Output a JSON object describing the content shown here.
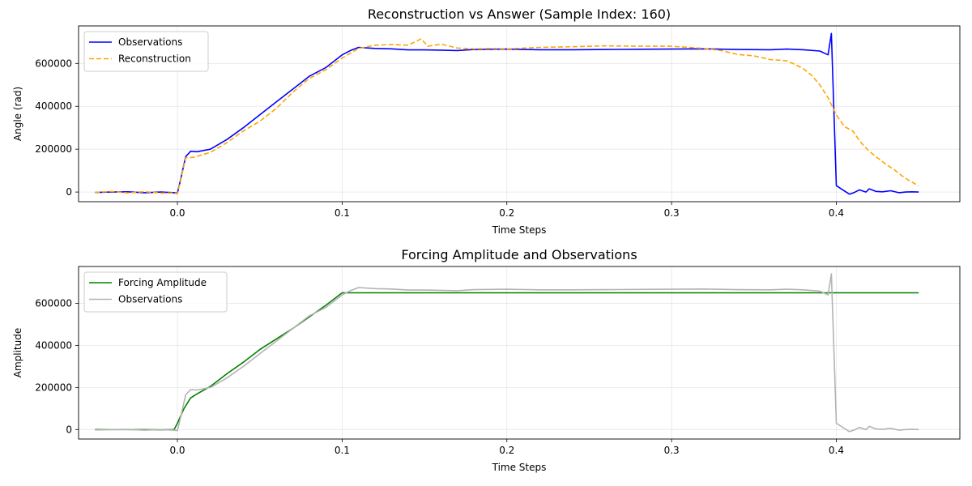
{
  "chart_data": [
    {
      "type": "line",
      "title": "Reconstruction vs Answer (Sample Index: 160)",
      "xlabel": "Time Steps",
      "ylabel": "Angle (rad)",
      "xlim": [
        -0.06,
        0.475
      ],
      "ylim": [
        -45000,
        775000
      ],
      "x_ticks": [
        0.0,
        0.1,
        0.2,
        0.3,
        0.4
      ],
      "x_tick_labels": [
        "0.0",
        "0.1",
        "0.2",
        "0.3",
        "0.4"
      ],
      "y_ticks": [
        0,
        200000,
        400000,
        600000
      ],
      "y_tick_labels": [
        "0",
        "200000",
        "400000",
        "600000"
      ],
      "grid": true,
      "legend_position": "top-left",
      "series": [
        {
          "name": "Observations",
          "color": "#0000ff",
          "style": "solid",
          "x": [
            -0.05,
            -0.04,
            -0.03,
            -0.02,
            -0.01,
            -0.002,
            0.0,
            0.002,
            0.005,
            0.008,
            0.012,
            0.02,
            0.03,
            0.04,
            0.05,
            0.06,
            0.07,
            0.08,
            0.09,
            0.1,
            0.105,
            0.11,
            0.12,
            0.13,
            0.14,
            0.15,
            0.16,
            0.17,
            0.18,
            0.2,
            0.22,
            0.24,
            0.26,
            0.28,
            0.3,
            0.32,
            0.34,
            0.36,
            0.37,
            0.38,
            0.39,
            0.395,
            0.397,
            0.4,
            0.405,
            0.408,
            0.411,
            0.414,
            0.418,
            0.42,
            0.424,
            0.428,
            0.433,
            0.438,
            0.442,
            0.446,
            0.45
          ],
          "y": [
            -2000,
            0,
            1000,
            -3000,
            0,
            -3000,
            -5000,
            60000,
            165000,
            190000,
            188000,
            200000,
            245000,
            300000,
            360000,
            420000,
            480000,
            540000,
            580000,
            640000,
            660000,
            675000,
            670000,
            668000,
            663000,
            663000,
            662000,
            660000,
            665000,
            667000,
            664000,
            664000,
            665000,
            666000,
            667000,
            668000,
            665000,
            664000,
            667000,
            664000,
            658000,
            640000,
            740000,
            30000,
            5000,
            -10000,
            -2000,
            10000,
            0,
            15000,
            3000,
            1000,
            6000,
            -3000,
            0,
            1000,
            0
          ]
        },
        {
          "name": "Reconstruction",
          "color": "#ffa500",
          "style": "dashed",
          "x": [
            -0.05,
            -0.04,
            -0.03,
            -0.02,
            -0.01,
            -0.002,
            0.0,
            0.002,
            0.005,
            0.01,
            0.02,
            0.03,
            0.04,
            0.05,
            0.06,
            0.07,
            0.08,
            0.09,
            0.1,
            0.11,
            0.12,
            0.13,
            0.14,
            0.148,
            0.152,
            0.16,
            0.17,
            0.18,
            0.19,
            0.2,
            0.22,
            0.24,
            0.26,
            0.28,
            0.3,
            0.32,
            0.33,
            0.34,
            0.35,
            0.36,
            0.37,
            0.375,
            0.38,
            0.385,
            0.39,
            0.395,
            0.4,
            0.405,
            0.41,
            0.415,
            0.42,
            0.425,
            0.43,
            0.435,
            0.44,
            0.445,
            0.45
          ],
          "y": [
            -2000,
            3000,
            -4000,
            2000,
            -5000,
            -4000,
            -8000,
            55000,
            160000,
            162000,
            185000,
            230000,
            285000,
            330000,
            390000,
            465000,
            530000,
            570000,
            625000,
            670000,
            685000,
            688000,
            685000,
            715000,
            680000,
            690000,
            672000,
            668000,
            670000,
            668000,
            675000,
            678000,
            682000,
            680000,
            680000,
            670000,
            660000,
            642000,
            635000,
            618000,
            612000,
            595000,
            575000,
            545000,
            500000,
            440000,
            360000,
            305000,
            285000,
            230000,
            190000,
            160000,
            130000,
            105000,
            75000,
            50000,
            30000
          ]
        }
      ]
    },
    {
      "type": "line",
      "title": "Forcing Amplitude and Observations",
      "xlabel": "Time Steps",
      "ylabel": "Amplitude",
      "xlim": [
        -0.06,
        0.475
      ],
      "ylim": [
        -45000,
        775000
      ],
      "x_ticks": [
        0.0,
        0.1,
        0.2,
        0.3,
        0.4
      ],
      "x_tick_labels": [
        "0.0",
        "0.1",
        "0.2",
        "0.3",
        "0.4"
      ],
      "y_ticks": [
        0,
        200000,
        400000,
        600000
      ],
      "y_tick_labels": [
        "0",
        "200000",
        "400000",
        "600000"
      ],
      "grid": true,
      "legend_position": "top-left",
      "series": [
        {
          "name": "Forcing Amplitude",
          "color": "#008000",
          "style": "solid",
          "x": [
            -0.05,
            -0.03,
            -0.01,
            -0.002,
            0.0,
            0.004,
            0.008,
            0.012,
            0.02,
            0.03,
            0.04,
            0.05,
            0.06,
            0.07,
            0.08,
            0.09,
            0.1,
            0.45
          ],
          "y": [
            0,
            0,
            -1000,
            0,
            30000,
            100000,
            150000,
            170000,
            205000,
            265000,
            320000,
            380000,
            430000,
            480000,
            535000,
            590000,
            650000,
            650000
          ]
        },
        {
          "name": "Observations",
          "color": "#b3b3b3",
          "style": "solid",
          "x": [
            -0.05,
            -0.04,
            -0.03,
            -0.02,
            -0.01,
            -0.002,
            0.0,
            0.002,
            0.005,
            0.008,
            0.012,
            0.02,
            0.03,
            0.04,
            0.05,
            0.06,
            0.07,
            0.08,
            0.09,
            0.1,
            0.105,
            0.11,
            0.12,
            0.13,
            0.14,
            0.15,
            0.16,
            0.17,
            0.18,
            0.2,
            0.22,
            0.24,
            0.26,
            0.28,
            0.3,
            0.32,
            0.34,
            0.36,
            0.37,
            0.38,
            0.39,
            0.395,
            0.397,
            0.4,
            0.405,
            0.408,
            0.411,
            0.414,
            0.418,
            0.42,
            0.424,
            0.428,
            0.433,
            0.438,
            0.442,
            0.446,
            0.45
          ],
          "y": [
            -2000,
            0,
            1000,
            -3000,
            0,
            -3000,
            -5000,
            60000,
            165000,
            190000,
            188000,
            200000,
            245000,
            300000,
            360000,
            420000,
            480000,
            540000,
            580000,
            640000,
            660000,
            675000,
            670000,
            668000,
            663000,
            663000,
            662000,
            660000,
            665000,
            667000,
            664000,
            664000,
            665000,
            666000,
            667000,
            668000,
            665000,
            664000,
            667000,
            664000,
            658000,
            640000,
            740000,
            30000,
            5000,
            -10000,
            -2000,
            10000,
            0,
            15000,
            3000,
            1000,
            6000,
            -3000,
            0,
            1000,
            0
          ]
        }
      ]
    }
  ]
}
